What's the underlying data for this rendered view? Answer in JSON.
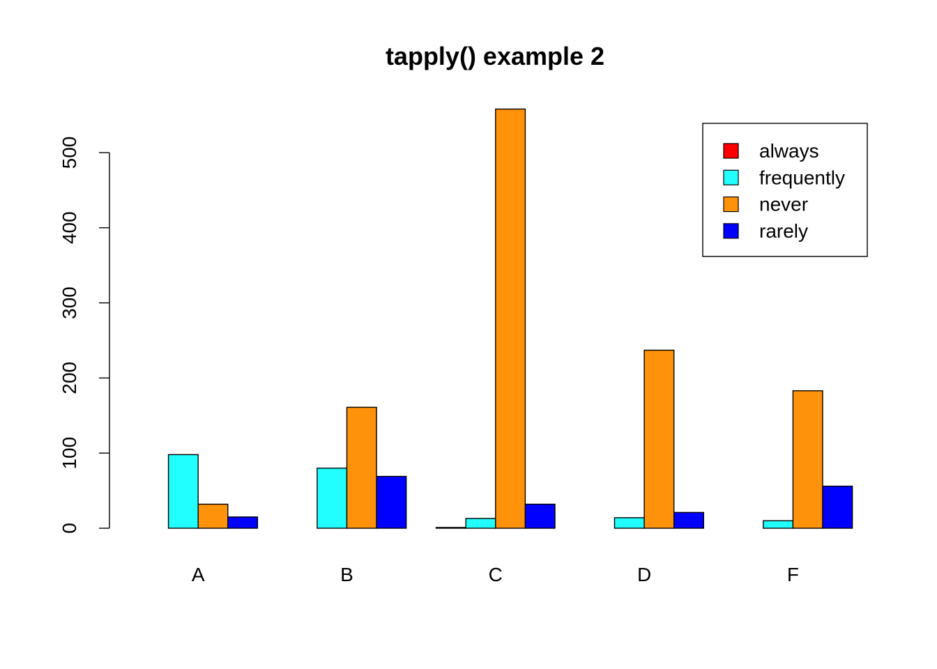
{
  "chart_data": {
    "type": "bar",
    "title": "tapply() example 2",
    "xlabel": "",
    "ylabel": "",
    "categories": [
      "A",
      "B",
      "C",
      "D",
      "F"
    ],
    "series": [
      {
        "name": "always",
        "color": "#FF0000",
        "values": [
          0,
          0,
          1,
          0,
          0
        ]
      },
      {
        "name": "frequently",
        "color": "#22FFFF",
        "values": [
          98,
          80,
          13,
          14,
          10
        ]
      },
      {
        "name": "never",
        "color": "#FF920B",
        "values": [
          32,
          161,
          558,
          237,
          183
        ]
      },
      {
        "name": "rarely",
        "color": "#0000FF",
        "values": [
          15,
          69,
          32,
          21,
          56
        ]
      }
    ],
    "ylim": [
      0,
      560
    ],
    "yticks": [
      "0",
      "100",
      "200",
      "300",
      "400",
      "500"
    ],
    "grid": false,
    "legend_position": "top-right"
  }
}
